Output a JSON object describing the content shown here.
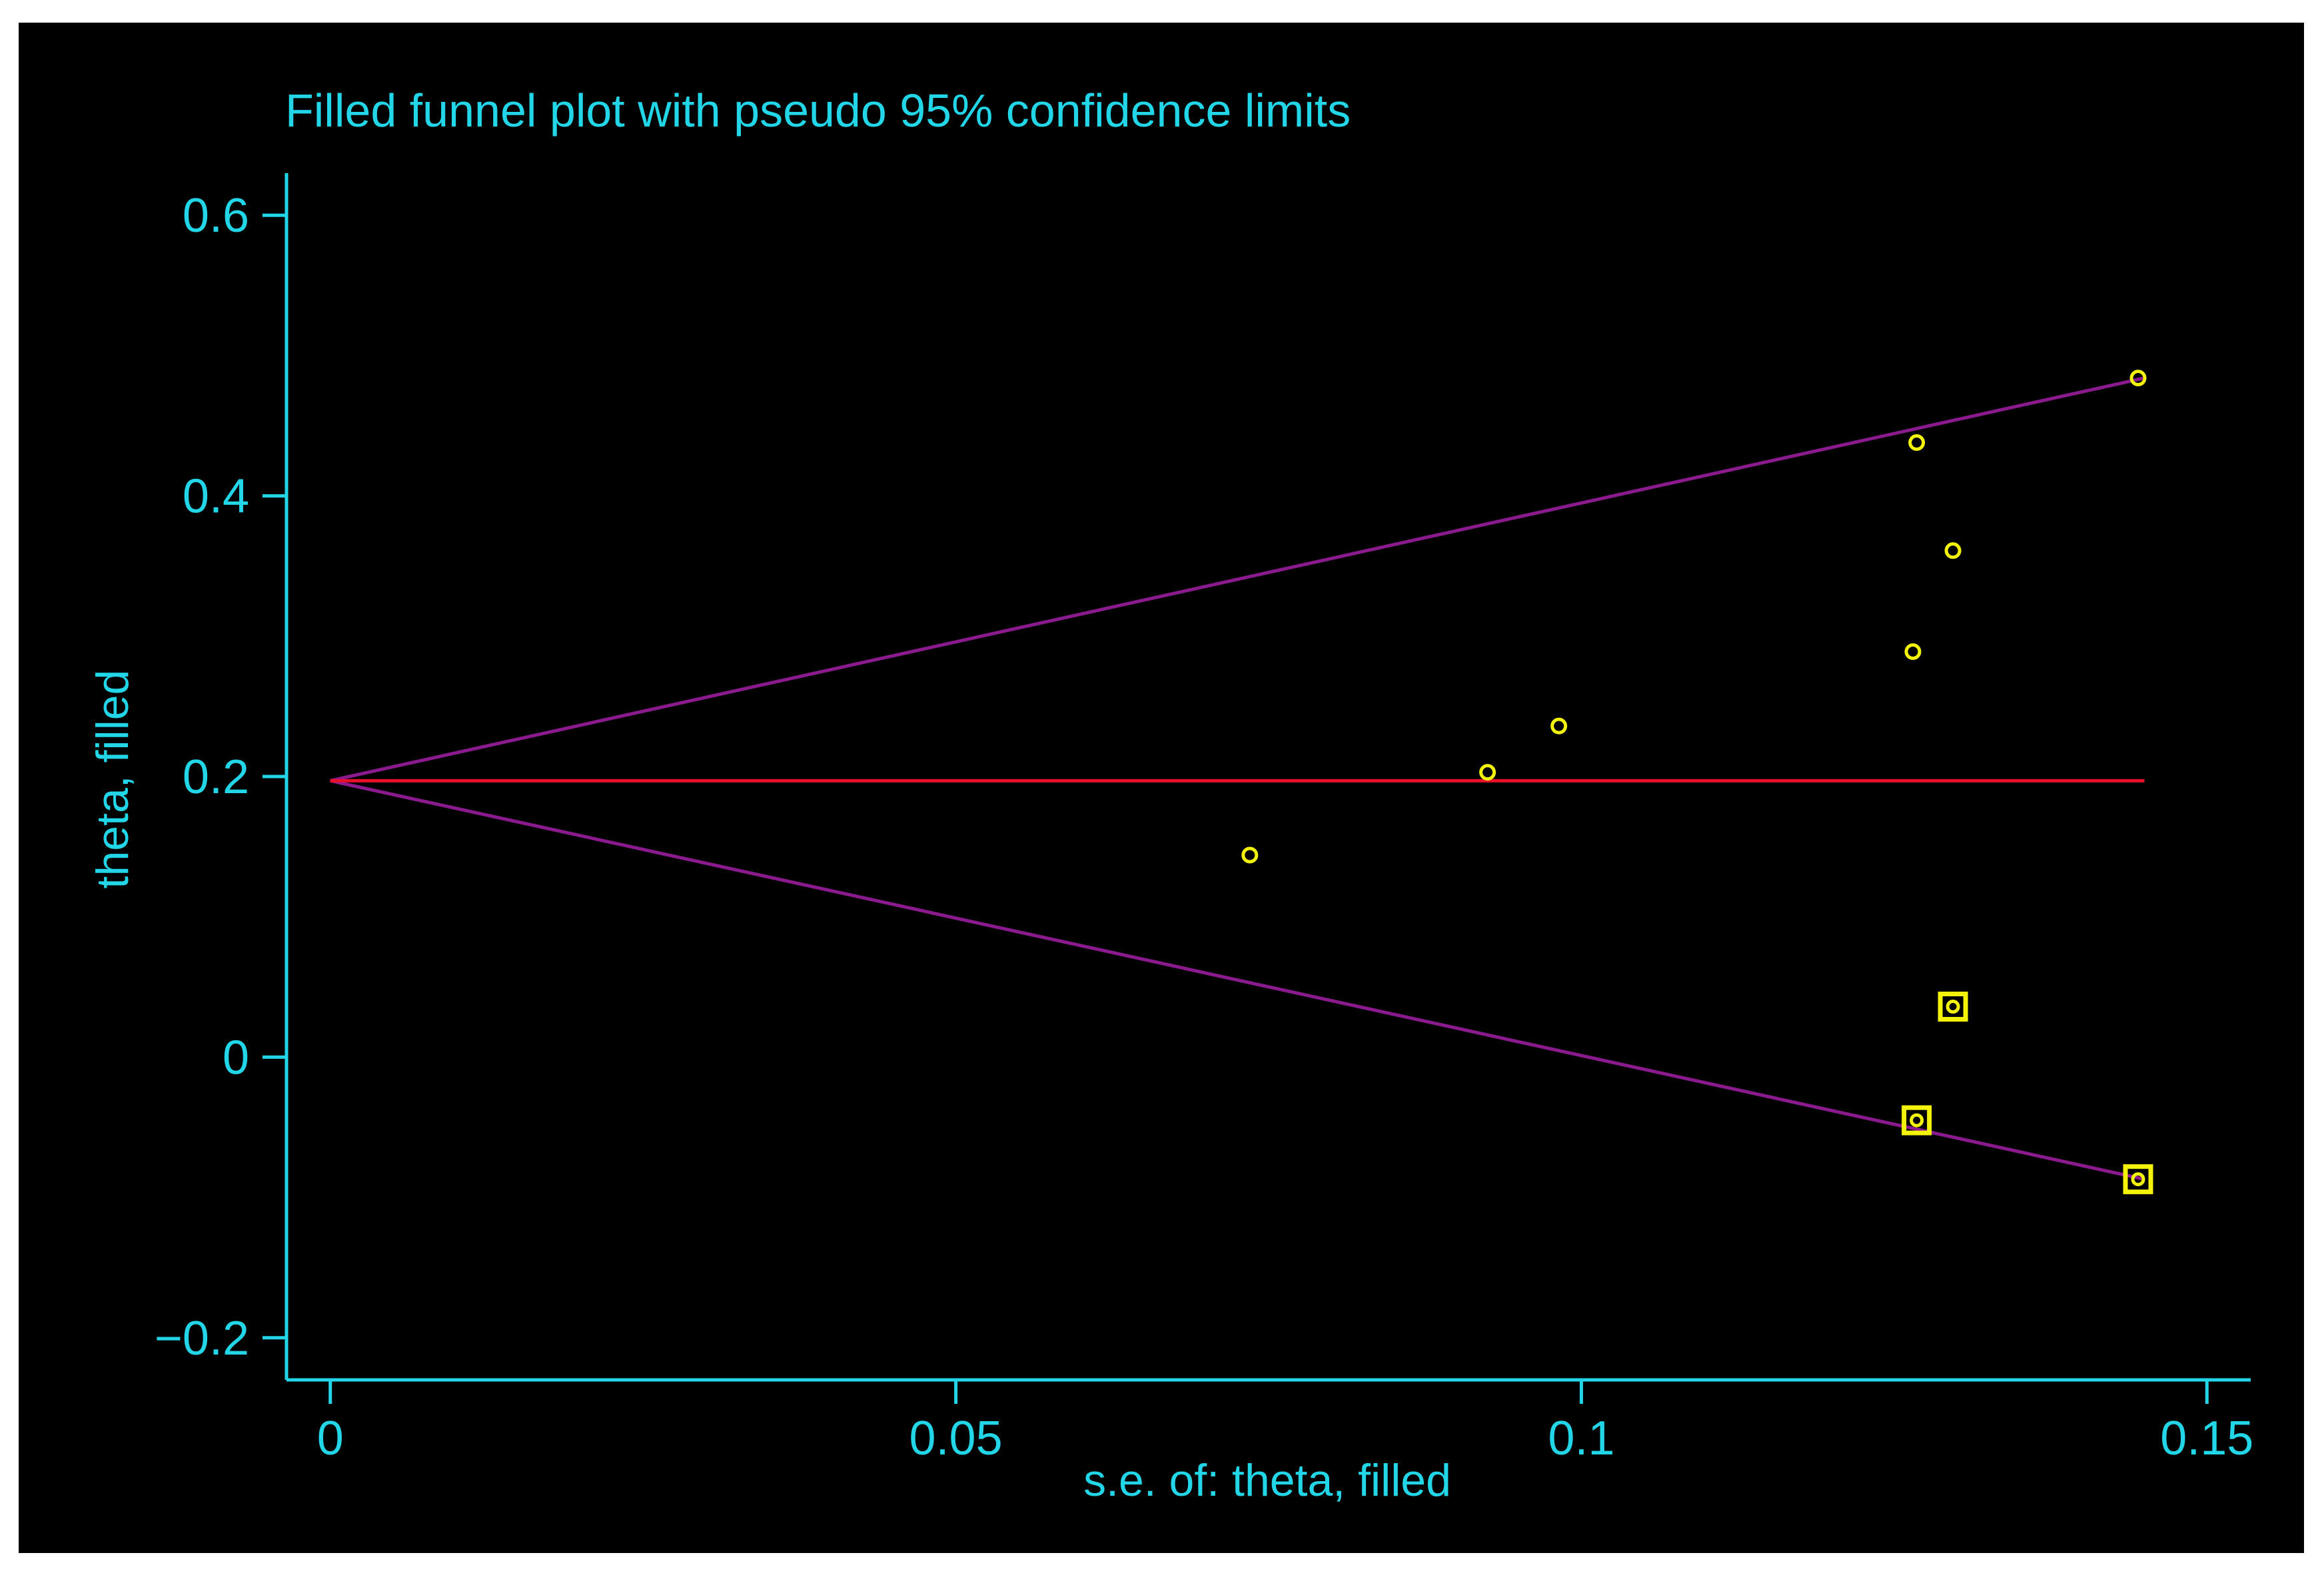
{
  "chart_data": {
    "type": "scatter",
    "title": "Filled funnel plot with pseudo 95% confidence limits",
    "xlabel": "s.e. of: theta, filled",
    "ylabel": "theta, filled",
    "xlim": [
      -0.0035,
      0.1535
    ],
    "ylim": [
      -0.23,
      0.63
    ],
    "x_ticks": [
      0,
      0.05,
      0.1,
      0.15
    ],
    "x_tick_labels": [
      "0",
      "0.05",
      "0.1",
      "0.15"
    ],
    "y_ticks": [
      -0.2,
      0,
      0.2,
      0.4,
      0.6
    ],
    "y_tick_labels": [
      "−0.2",
      "0",
      "0.2",
      "0.4",
      "0.6"
    ],
    "pooled_estimate": 0.197,
    "pooled_line_x": [
      0,
      0.145
    ],
    "funnel": {
      "apex": [
        0,
        0.197
      ],
      "upper_end": [
        0.145,
        0.484
      ],
      "lower_end": [
        0.145,
        -0.087
      ]
    },
    "series": [
      {
        "marker": "circle",
        "points": [
          {
            "x": 0.0735,
            "y": 0.144
          },
          {
            "x": 0.0925,
            "y": 0.203
          },
          {
            "x": 0.0982,
            "y": 0.236
          },
          {
            "x": 0.1265,
            "y": 0.289
          },
          {
            "x": 0.1268,
            "y": 0.438
          },
          {
            "x": 0.1297,
            "y": 0.361
          },
          {
            "x": 0.1445,
            "y": 0.484
          }
        ]
      },
      {
        "marker": "boxed-circle",
        "points": [
          {
            "x": 0.1268,
            "y": -0.045
          },
          {
            "x": 0.1297,
            "y": 0.036
          },
          {
            "x": 0.1445,
            "y": -0.087
          }
        ]
      }
    ],
    "colors": {
      "background": "#000000",
      "axes": "#22d6e8",
      "text": "#22d6e8",
      "pooled_line": "#e8102a",
      "funnel_lines": "#8a1a8e",
      "points": "#f2f20a"
    }
  }
}
